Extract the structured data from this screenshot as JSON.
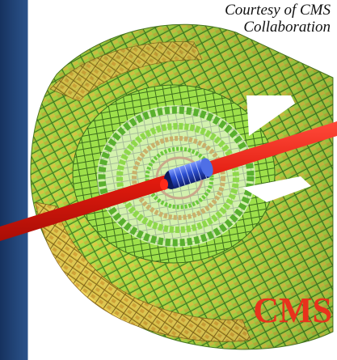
{
  "credit": {
    "line1": "Courtesy of  CMS",
    "line2": "Collaboration"
  },
  "label": "CMS",
  "colors": {
    "panel_blue": "#24487c",
    "beam_red": "#e32212",
    "tile_green": "#7ad63a",
    "tile_yellow": "#f2cf3a",
    "tile_orange": "#d99a2b",
    "core_blue": "#1f3fb5",
    "label_red": "#e8321c"
  }
}
